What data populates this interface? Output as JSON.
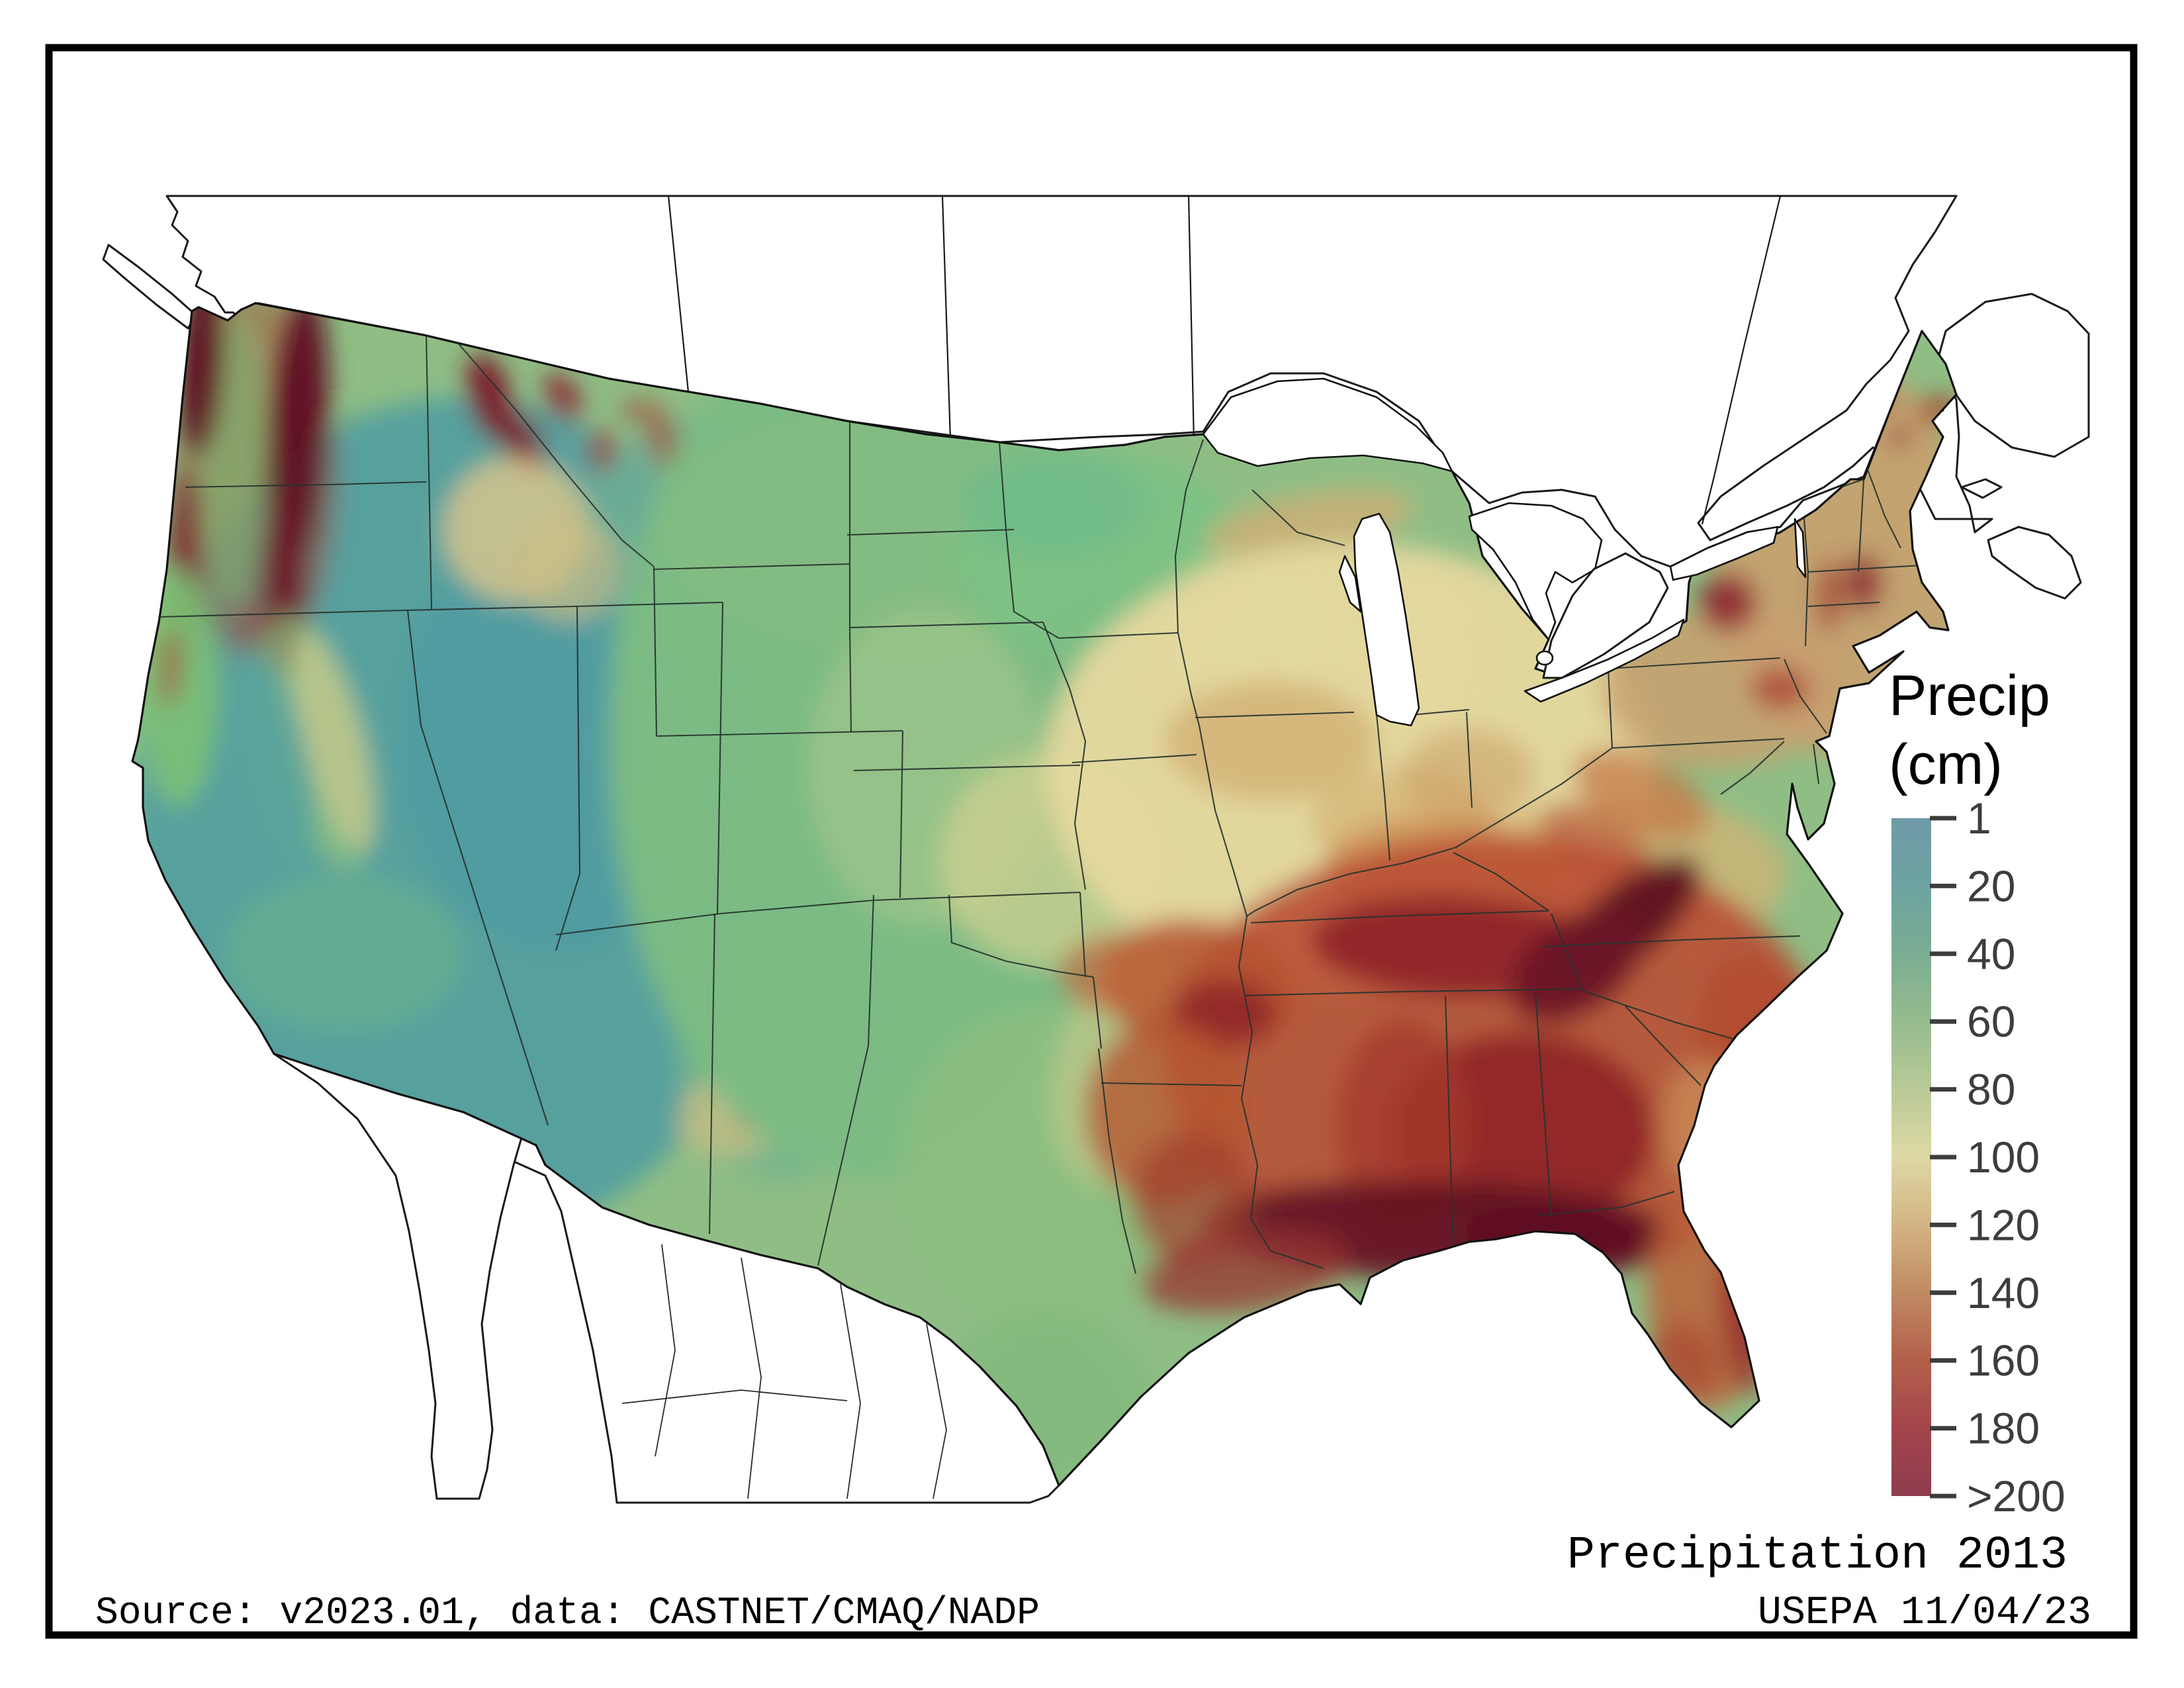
{
  "figure": {
    "background": "#ffffff",
    "frame_color": "#000000"
  },
  "titles": {
    "map_title": "Precipitation 2013",
    "agency_date": "USEPA 11/04/23",
    "source_text": "Source: v2023.01, data: CASTNET/CMAQ/NADP"
  },
  "legend": {
    "title_line1": "Precip",
    "title_line2": "(cm)",
    "ticks": [
      "1",
      "20",
      "40",
      "60",
      "80",
      "100",
      "120",
      "140",
      "160",
      "180",
      ">200"
    ],
    "gradient_stops": [
      "#6f9aa8",
      "#6da3a1",
      "#7bad93",
      "#96bc8e",
      "#b9c997",
      "#ded9a4",
      "#d3b384",
      "#c08a63",
      "#b3604b",
      "#a4454b",
      "#8e3c4f"
    ]
  },
  "map_data": {
    "type": "choropleth_raster",
    "variable": "Precip",
    "units": "cm",
    "year_shown": "2013",
    "scale_min_label": "1",
    "scale_max_label": ">200",
    "regions": [
      {
        "region": "Pacific Northwest coast & Cascades (WA/OR)",
        "precip_cm": ">200"
      },
      {
        "region": "Columbia Basin / interior Northwest",
        "precip_cm": "20-60"
      },
      {
        "region": "Great Basin & Southwest deserts (NV/UT/AZ)",
        "precip_cm": "20-40"
      },
      {
        "region": "California Central Valley & south coast",
        "precip_cm": "20-50"
      },
      {
        "region": "Northern California coast & Sierra Nevada",
        "precip_cm": "60-120"
      },
      {
        "region": "Northern Rockies (ID/MT mountain ranges)",
        "precip_cm": "100->200 patches"
      },
      {
        "region": "Great Plains (ND/SD/NE/KS/W TX)",
        "precip_cm": "40-70"
      },
      {
        "region": "Upper Midwest (MN/WI/MI)",
        "precip_cm": "60-90"
      },
      {
        "region": "Corn Belt / Ohio Valley",
        "precip_cm": "90-130"
      },
      {
        "region": "Ozarks & eastern Oklahoma/Arkansas",
        "precip_cm": "120-180"
      },
      {
        "region": "Southeast & Gulf Coast (LA/MS/AL/GA/TN)",
        "precip_cm": "150->200"
      },
      {
        "region": "Southern Appalachians (E TN/W NC/N GA)",
        "precip_cm": ">200"
      },
      {
        "region": "Florida",
        "precip_cm": "120-180"
      },
      {
        "region": "Mid-Atlantic (VA/MD/PA/NJ)",
        "precip_cm": "90-130"
      },
      {
        "region": "Northeast (NY/New England/ME)",
        "precip_cm": "100-160"
      },
      {
        "region": "South Texas",
        "precip_cm": "40-70"
      }
    ]
  }
}
